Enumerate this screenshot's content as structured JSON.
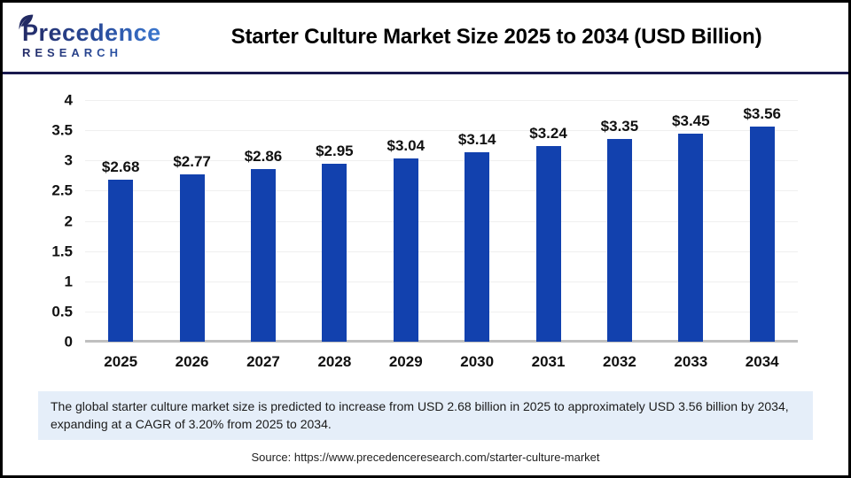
{
  "logo": {
    "name": "Precedence",
    "subtitle": "RESEARCH"
  },
  "header": {
    "title": "Starter Culture Market Size 2025 to 2034 (USD Billion)"
  },
  "chart_data": {
    "type": "bar",
    "title": "Starter Culture Market Size 2025 to 2034 (USD Billion)",
    "categories": [
      "2025",
      "2026",
      "2027",
      "2028",
      "2029",
      "2030",
      "2031",
      "2032",
      "2033",
      "2034"
    ],
    "values": [
      2.68,
      2.77,
      2.86,
      2.95,
      3.04,
      3.14,
      3.24,
      3.35,
      3.45,
      3.56
    ],
    "value_labels": [
      "$2.68",
      "$2.77",
      "$2.86",
      "$2.95",
      "$3.04",
      "$3.14",
      "$3.24",
      "$3.35",
      "$3.45",
      "$3.56"
    ],
    "xlabel": "",
    "ylabel": "",
    "ylim": [
      0,
      4
    ],
    "yticks": [
      0,
      0.5,
      1,
      1.5,
      2,
      2.5,
      3,
      3.5,
      4
    ],
    "ytick_labels": [
      "0",
      "0.5",
      "1",
      "1.5",
      "2",
      "2.5",
      "3",
      "3.5",
      "4"
    ],
    "grid": true,
    "legend": "none",
    "bar_color": "#1241AE"
  },
  "footer": {
    "description": "The global starter culture market size is predicted to increase from USD 2.68 billion in 2025 to approximately USD 3.56 billion by 2034, expanding at a CAGR of 3.20% from 2025 to 2034.",
    "source": "Source: https://www.precedenceresearch.com/starter-culture-market"
  },
  "colors": {
    "bar": "#1241AE",
    "header_divider": "#1A1A4E",
    "description_background": "#E5EEF9",
    "gridline": "#EFEFEF",
    "baseline": "#BFBFBF",
    "logo_gradient_start": "#232A66",
    "logo_gradient_end": "#3F80D8",
    "title_text": "#000000"
  }
}
